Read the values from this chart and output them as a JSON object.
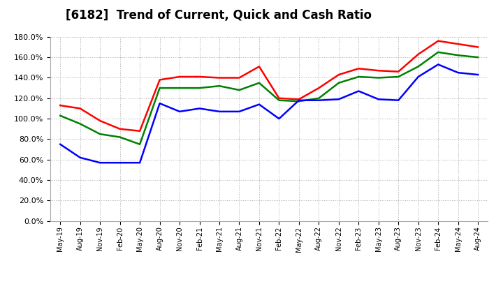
{
  "title": "[6182]  Trend of Current, Quick and Cash Ratio",
  "labels": [
    "May-19",
    "Aug-19",
    "Nov-19",
    "Feb-20",
    "May-20",
    "Aug-20",
    "Nov-20",
    "Feb-21",
    "May-21",
    "Aug-21",
    "Nov-21",
    "Feb-22",
    "May-22",
    "Aug-22",
    "Nov-22",
    "Feb-23",
    "May-23",
    "Aug-23",
    "Nov-23",
    "Feb-24",
    "May-24",
    "Aug-24"
  ],
  "current_ratio": [
    113,
    110,
    98,
    90,
    88,
    138,
    141,
    141,
    140,
    140,
    151,
    120,
    119,
    130,
    143,
    149,
    147,
    146,
    163,
    176,
    173,
    170
  ],
  "quick_ratio": [
    103,
    95,
    85,
    82,
    75,
    130,
    130,
    130,
    132,
    128,
    135,
    118,
    117,
    120,
    135,
    141,
    140,
    141,
    151,
    165,
    162,
    160
  ],
  "cash_ratio": [
    75,
    62,
    57,
    57,
    57,
    115,
    107,
    110,
    107,
    107,
    114,
    100,
    118,
    118,
    119,
    127,
    119,
    118,
    141,
    153,
    145,
    143
  ],
  "current_color": "#FF0000",
  "quick_color": "#008000",
  "cash_color": "#0000FF",
  "ylim": [
    0,
    180
  ],
  "yticks": [
    0,
    20,
    40,
    60,
    80,
    100,
    120,
    140,
    160,
    180
  ],
  "background_color": "#FFFFFF",
  "grid_color": "#AAAAAA",
  "line_width": 1.8,
  "title_fontsize": 12,
  "tick_fontsize": 7,
  "legend_fontsize": 9
}
